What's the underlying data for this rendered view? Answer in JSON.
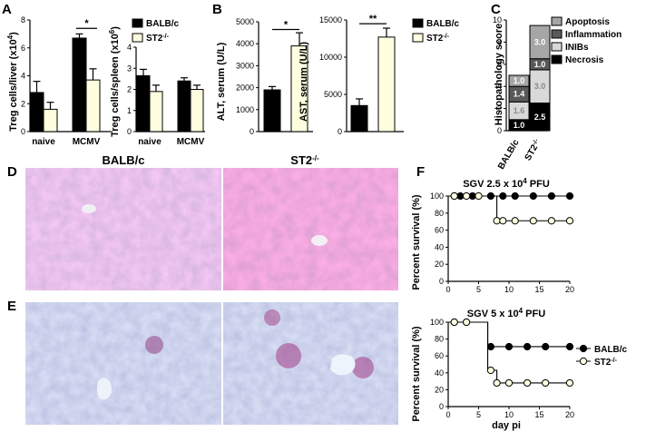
{
  "panels": {
    "A": "A",
    "B": "B",
    "C": "C",
    "D": "D",
    "E": "E",
    "F": "F"
  },
  "colors": {
    "balbc": "#000000",
    "st2": "#ffffe0",
    "apoptosis": "#a6a6a6",
    "inflammation": "#595959",
    "inibs": "#d9d9d9",
    "necrosis": "#000000",
    "he_tissue": "#c9a7cf",
    "pas_tissue": "#9aa6cf"
  },
  "micrographs": {
    "col_left": "BALB/c",
    "col_right": "ST2",
    "col_right_sup": "-/-"
  },
  "legend_strains": {
    "balbc": "BALB/c",
    "st2": "ST2",
    "st2_sup": "-/-"
  },
  "chart_data": [
    {
      "id": "A-liver",
      "type": "bar",
      "ylabel": "Treg cells/liver (x10",
      "ylabel_sup": "4",
      "ylabel_end": ")",
      "categories": [
        "naive",
        "MCMV"
      ],
      "ylim": [
        0,
        8
      ],
      "yticks": [
        0,
        2,
        4,
        6,
        8
      ],
      "series": [
        {
          "name": "BALB/c",
          "values": [
            2.8,
            6.7
          ],
          "errors": [
            0.8,
            0.3
          ]
        },
        {
          "name": "ST2-/-",
          "values": [
            1.6,
            3.7
          ],
          "errors": [
            0.5,
            0.8
          ]
        }
      ],
      "significance": [
        {
          "category": "MCMV",
          "label": "*"
        }
      ]
    },
    {
      "id": "A-spleen",
      "type": "bar",
      "ylabel": "Treg cells/spleen (x10",
      "ylabel_sup": "6",
      "ylabel_end": ")",
      "categories": [
        "naive",
        "MCMV"
      ],
      "ylim": [
        0,
        4
      ],
      "yticks": [
        0,
        1,
        2,
        3,
        4
      ],
      "series": [
        {
          "name": "BALB/c",
          "values": [
            2.65,
            2.4
          ],
          "errors": [
            0.3,
            0.15
          ]
        },
        {
          "name": "ST2-/-",
          "values": [
            1.9,
            2.0
          ],
          "errors": [
            0.3,
            0.2
          ]
        }
      ]
    },
    {
      "id": "B-alt",
      "type": "bar",
      "ylabel": "ALT, serum (U/L)",
      "categories": [
        "BALB/c",
        "ST2-/-"
      ],
      "ylim": [
        0,
        5000
      ],
      "yticks": [
        0,
        1000,
        2000,
        3000,
        4000,
        5000
      ],
      "series": [
        {
          "name": "ALT",
          "values": [
            1900,
            3900
          ],
          "errors": [
            150,
            600
          ]
        }
      ],
      "significance": [
        {
          "label": "*"
        }
      ]
    },
    {
      "id": "B-ast",
      "type": "bar",
      "ylabel": "AST, serum (U/L)",
      "categories": [
        "BALB/c",
        "ST2-/-"
      ],
      "ylim": [
        0,
        15000
      ],
      "yticks": [
        0,
        5000,
        10000,
        15000
      ],
      "series": [
        {
          "name": "AST",
          "values": [
            3500,
            12700
          ],
          "errors": [
            900,
            1200
          ]
        }
      ],
      "significance": [
        {
          "label": "**"
        }
      ]
    },
    {
      "id": "C",
      "type": "bar",
      "ylabel": "Histopathology score",
      "categories": [
        "BALB/c",
        "ST2-/-"
      ],
      "ylim": [
        0,
        10
      ],
      "yticks": [
        0,
        2,
        4,
        6,
        8,
        10
      ],
      "stacked": true,
      "series": [
        {
          "name": "Necrosis",
          "values": [
            1.0,
            2.5
          ],
          "labels": [
            "1.0",
            "2.5"
          ]
        },
        {
          "name": "INIBs",
          "values": [
            1.6,
            3.0
          ],
          "labels": [
            "1.6",
            "3.0"
          ]
        },
        {
          "name": "Inflammation",
          "values": [
            1.4,
            1.0
          ],
          "labels": [
            "1.4",
            "1.0"
          ]
        },
        {
          "name": "Apoptosis",
          "values": [
            1.0,
            3.0
          ],
          "labels": [
            "1.0",
            "3.0"
          ]
        }
      ]
    },
    {
      "id": "F-top",
      "type": "line",
      "title": "SGV 2.5 x 10",
      "title_sup": "4",
      "title_end": " PFU",
      "ylabel": "Percent survival (%)",
      "xlim": [
        0,
        20
      ],
      "xticks": [
        0,
        5,
        10,
        15,
        20
      ],
      "ylim": [
        0,
        100
      ],
      "yticks": [
        0,
        20,
        40,
        60,
        80,
        100
      ],
      "series": [
        {
          "name": "BALB/c",
          "x": [
            0,
            1,
            2,
            4,
            7,
            9,
            11,
            14,
            17,
            20
          ],
          "y": [
            100,
            100,
            100,
            100,
            100,
            100,
            100,
            100,
            100,
            100
          ]
        },
        {
          "name": "ST2-/-",
          "x": [
            0,
            1,
            3,
            5,
            8,
            9,
            11,
            14,
            17,
            20
          ],
          "y": [
            100,
            100,
            100,
            100,
            71,
            71,
            71,
            71,
            71,
            71
          ],
          "step_at": 8
        }
      ]
    },
    {
      "id": "F-bottom",
      "type": "line",
      "title": "SGV 5 x 10",
      "title_sup": "4",
      "title_end": " PFU",
      "ylabel": "Percent survival (%)",
      "xlabel": "day pi",
      "xlim": [
        0,
        20
      ],
      "xticks": [
        0,
        5,
        10,
        15,
        20
      ],
      "ylim": [
        0,
        100
      ],
      "yticks": [
        0,
        20,
        40,
        60,
        80,
        100
      ],
      "series": [
        {
          "name": "BALB/c",
          "x": [
            0,
            1,
            3,
            7,
            10,
            13,
            16,
            20
          ],
          "y": [
            100,
            100,
            100,
            71,
            71,
            71,
            71,
            71
          ],
          "step_at": 6.5
        },
        {
          "name": "ST2-/-",
          "x": [
            0,
            1,
            3,
            7,
            8,
            10,
            13,
            16,
            20
          ],
          "y": [
            100,
            100,
            100,
            43,
            28,
            28,
            28,
            28,
            28
          ],
          "step_at": 6.5
        }
      ]
    }
  ]
}
